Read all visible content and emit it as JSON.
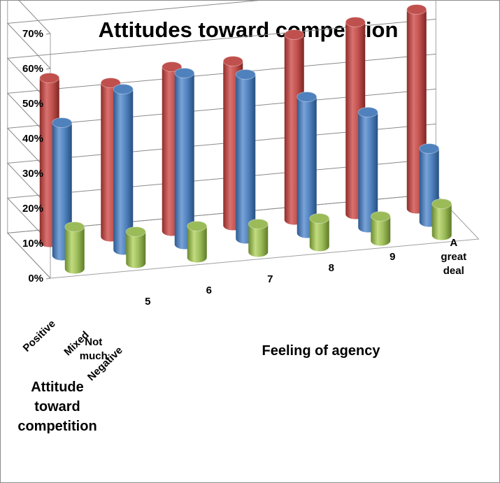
{
  "chart_data": {
    "type": "bar",
    "style": "3d-cylinder",
    "title": "Attitudes toward competition",
    "xlabel": "Feeling of agency",
    "zlabel_lines": [
      "Attitude",
      "toward",
      "competition"
    ],
    "categories": [
      "Not much",
      "5",
      "6",
      "7",
      "8",
      "9",
      "A great deal"
    ],
    "category_label_lines": [
      [
        "Not",
        "much"
      ],
      [
        "5"
      ],
      [
        "6"
      ],
      [
        "7"
      ],
      [
        "8"
      ],
      [
        "9"
      ],
      [
        "A",
        "great",
        "deal"
      ]
    ],
    "y_ticks": [
      "0%",
      "10%",
      "20%",
      "30%",
      "40%",
      "50%",
      "60%",
      "70%"
    ],
    "ylim": [
      0,
      0.7
    ],
    "series": [
      {
        "name": "Positive",
        "color": "#c0504d",
        "values": [
          0.47,
          0.44,
          0.47,
          0.47,
          0.53,
          0.55,
          0.57
        ]
      },
      {
        "name": "Mixed",
        "color": "#4f81bd",
        "values": [
          0.38,
          0.46,
          0.49,
          0.47,
          0.39,
          0.33,
          0.21
        ]
      },
      {
        "name": "Negative",
        "color": "#9bbb59",
        "values": [
          0.12,
          0.09,
          0.09,
          0.08,
          0.08,
          0.07,
          0.09
        ]
      }
    ],
    "grid": true
  }
}
